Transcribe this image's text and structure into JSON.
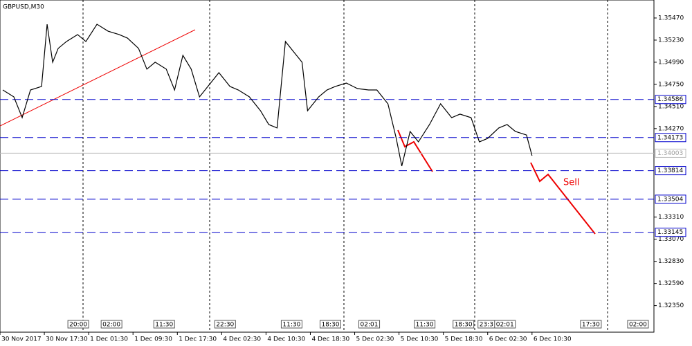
{
  "chart_data": {
    "type": "line",
    "title": "GBPUSD,M30",
    "annotation": "Sell",
    "xlim": [
      0,
      236
    ],
    "ylim": [
      1.32062,
      1.35665
    ],
    "grid": false,
    "xticks": [
      {
        "value": 0,
        "label": "30 Nov 2017"
      },
      {
        "value": 16,
        "label": "30 Nov 17:30"
      },
      {
        "value": 32,
        "label": "1 Dec 01:30"
      },
      {
        "value": 48,
        "label": "1 Dec 09:30"
      },
      {
        "value": 64,
        "label": "1 Dec 17:30"
      },
      {
        "value": 80,
        "label": "4 Dec 02:30"
      },
      {
        "value": 96,
        "label": "4 Dec 10:30"
      },
      {
        "value": 112,
        "label": "4 Dec 18:30"
      },
      {
        "value": 128,
        "label": "5 Dec 02:30"
      },
      {
        "value": 144,
        "label": "5 Dec 10:30"
      },
      {
        "value": 160,
        "label": "5 Dec 18:30"
      },
      {
        "value": 176,
        "label": "6 Dec 02:30"
      },
      {
        "value": 192,
        "label": "6 Dec 10:30"
      }
    ],
    "yticks": [
      {
        "value": 1.3547,
        "label": "1.35470"
      },
      {
        "value": 1.3523,
        "label": "1.35230"
      },
      {
        "value": 1.3499,
        "label": "1.34990"
      },
      {
        "value": 1.3475,
        "label": "1.34750"
      },
      {
        "value": 1.3451,
        "label": "1.34510"
      },
      {
        "value": 1.3427,
        "label": "1.34270"
      },
      {
        "value": 1.3331,
        "label": "1.33310"
      },
      {
        "value": 1.3307,
        "label": "1.33070"
      },
      {
        "value": 1.3283,
        "label": "1.32830"
      },
      {
        "value": 1.3259,
        "label": "1.32590"
      },
      {
        "value": 1.3235,
        "label": "1.32350"
      }
    ],
    "levels": [
      1.34586,
      1.34173,
      1.33814,
      1.33504,
      1.33145
    ],
    "current_price": 1.34003,
    "events": [
      {
        "value": 25,
        "label": "20:00"
      },
      {
        "value": 37,
        "label": "02:00"
      },
      {
        "value": 56,
        "label": "11:30"
      },
      {
        "value": 78,
        "label": "22:30"
      },
      {
        "value": 102,
        "label": "11:30"
      },
      {
        "value": 116,
        "label": "18:30"
      },
      {
        "value": 130,
        "label": "02:01"
      },
      {
        "value": 150,
        "label": "11:30"
      },
      {
        "value": 164,
        "label": "18:30"
      },
      {
        "value": 173,
        "label": "23:3"
      },
      {
        "value": 179,
        "label": "02:01"
      },
      {
        "value": 210,
        "label": "17:30"
      },
      {
        "value": 227,
        "label": "02:00"
      }
    ],
    "series": [
      {
        "name": "GBPUSD",
        "color": "#000000",
        "x": [
          1,
          5,
          8,
          11,
          15,
          17,
          19,
          21,
          24,
          28,
          31,
          35,
          39,
          43,
          46,
          50,
          53,
          56,
          60,
          63,
          66,
          69,
          72,
          75,
          79,
          83,
          86,
          90,
          94,
          97,
          100,
          103,
          106,
          109,
          111,
          115,
          118,
          121,
          125,
          129,
          133,
          136,
          140,
          143,
          145,
          148,
          151,
          155,
          159,
          163,
          166,
          170,
          173,
          176,
          180,
          183,
          186,
          190,
          192
        ],
        "values": [
          1.34689,
          1.34614,
          1.34389,
          1.34689,
          1.34727,
          1.35402,
          1.3499,
          1.3514,
          1.35215,
          1.3529,
          1.35215,
          1.35402,
          1.35327,
          1.3529,
          1.35252,
          1.3514,
          1.34915,
          1.3499,
          1.34915,
          1.34689,
          1.35065,
          1.34915,
          1.34614,
          1.34727,
          1.34877,
          1.34727,
          1.34689,
          1.34614,
          1.34464,
          1.34314,
          1.34277,
          1.35215,
          1.35102,
          1.3499,
          1.34464,
          1.34614,
          1.34689,
          1.34727,
          1.34764,
          1.34704,
          1.34689,
          1.34689,
          1.34539,
          1.34164,
          1.33864,
          1.34239,
          1.34126,
          1.34314,
          1.34539,
          1.34389,
          1.34427,
          1.34389,
          1.34126,
          1.34164,
          1.34277,
          1.34314,
          1.34239,
          1.34201,
          1.33976
        ]
      }
    ]
  }
}
